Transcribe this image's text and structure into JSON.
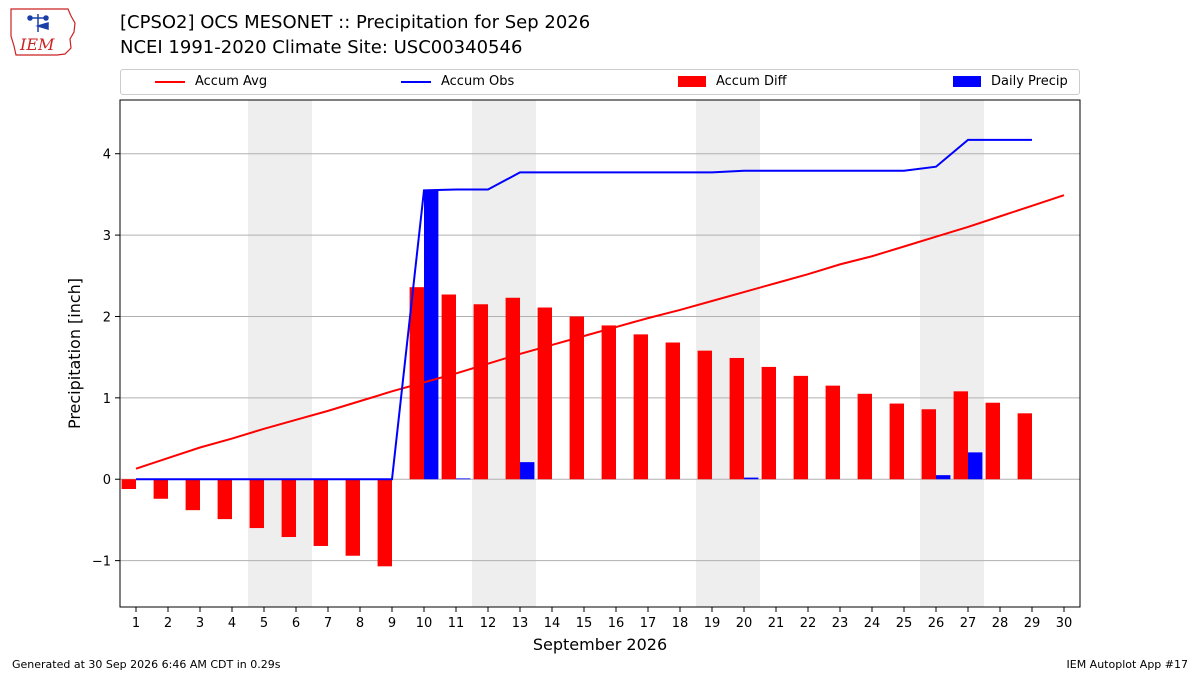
{
  "header": {
    "title_line1": "[CPSO2] OCS MESONET :: Precipitation for Sep 2026",
    "title_line2": "NCEI 1991-2020 Climate Site: USC00340546",
    "logo_text": "IEM"
  },
  "colors": {
    "avg": "#ff0000",
    "obs": "#0000ff",
    "diff": "#ff0000",
    "daily": "#0000ff",
    "weekend_shade": "#eeeeee",
    "grid": "#b0b0b0"
  },
  "legend": {
    "avg_label": "Accum Avg",
    "obs_label": "Accum Obs",
    "diff_label": "Accum Diff",
    "daily_label": "Daily Precip"
  },
  "footer": {
    "left": "Generated at 30 Sep 2026 6:46 AM CDT in 0.29s",
    "right": "IEM Autoplot App #17"
  },
  "chart_data": {
    "type": "bar",
    "xlabel": "September 2026",
    "ylabel": "Precipitation [inch]",
    "xlim": [
      0.5,
      30.5
    ],
    "ylim": [
      -1.57,
      4.66
    ],
    "grid": true,
    "legend_position": "top",
    "days": [
      1,
      2,
      3,
      4,
      5,
      6,
      7,
      8,
      9,
      10,
      11,
      12,
      13,
      14,
      15,
      16,
      17,
      18,
      19,
      20,
      21,
      22,
      23,
      24,
      25,
      26,
      27,
      28,
      29,
      30
    ],
    "yticks": [
      -1,
      0,
      1,
      2,
      3,
      4
    ],
    "ytick_labels": [
      "−1",
      "0",
      "1",
      "2",
      "3",
      "4"
    ],
    "shaded_days": [
      [
        5,
        6
      ],
      [
        12,
        13
      ],
      [
        19,
        20
      ],
      [
        26,
        27
      ]
    ],
    "series": [
      {
        "name": "Accum Avg",
        "type": "line",
        "values": [
          0.13,
          0.26,
          0.39,
          0.5,
          0.62,
          0.73,
          0.84,
          0.96,
          1.08,
          1.19,
          1.3,
          1.42,
          1.54,
          1.65,
          1.76,
          1.87,
          1.98,
          2.08,
          2.19,
          2.3,
          2.41,
          2.52,
          2.64,
          2.74,
          2.86,
          2.98,
          3.1,
          3.23,
          3.36,
          3.49
        ]
      },
      {
        "name": "Accum Obs",
        "type": "line",
        "values": [
          0.0,
          0.0,
          0.0,
          0.0,
          0.0,
          0.0,
          0.0,
          0.0,
          0.0,
          3.55,
          3.56,
          3.56,
          3.77,
          3.77,
          3.77,
          3.77,
          3.77,
          3.77,
          3.77,
          3.79,
          3.79,
          3.79,
          3.79,
          3.79,
          3.79,
          3.84,
          4.17,
          4.17,
          4.17
        ]
      },
      {
        "name": "Accum Diff",
        "type": "bar",
        "values": [
          -0.12,
          -0.24,
          -0.38,
          -0.49,
          -0.6,
          -0.71,
          -0.82,
          -0.94,
          -1.07,
          2.36,
          2.27,
          2.15,
          2.23,
          2.11,
          2.0,
          1.89,
          1.78,
          1.68,
          1.58,
          1.49,
          1.38,
          1.27,
          1.15,
          1.05,
          0.93,
          0.86,
          1.08,
          0.94,
          0.81
        ]
      },
      {
        "name": "Daily Precip",
        "type": "bar",
        "values": [
          0,
          0,
          0,
          0,
          0,
          0,
          0,
          0,
          0,
          3.55,
          0.01,
          0,
          0.21,
          0,
          0,
          0,
          0,
          0,
          0,
          0.02,
          0,
          0,
          0,
          0,
          0,
          0.05,
          0.33,
          0,
          0
        ]
      }
    ]
  }
}
